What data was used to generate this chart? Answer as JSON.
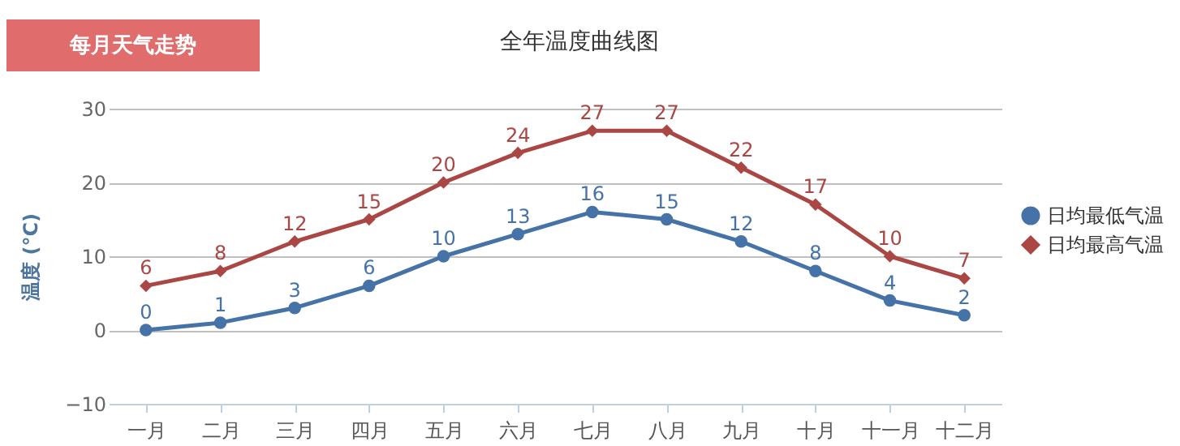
{
  "chart_data": {
    "type": "line",
    "title": "全年温度曲线图",
    "ylabel": "温度 (°C)",
    "annotations": [
      "每月天气走势"
    ],
    "categories": [
      "一月",
      "二月",
      "三月",
      "四月",
      "五月",
      "六月",
      "七月",
      "八月",
      "九月",
      "十月",
      "十一月",
      "十二月"
    ],
    "series": [
      {
        "name": "日均最低气温",
        "color": "#4572a7",
        "marker": "circle",
        "values": [
          0,
          1,
          3,
          6,
          10,
          13,
          16,
          15,
          12,
          8,
          4,
          2
        ]
      },
      {
        "name": "日均最高气温",
        "color": "#aa4643",
        "marker": "diamond",
        "values": [
          6,
          8,
          12,
          15,
          20,
          24,
          27,
          27,
          22,
          17,
          10,
          7
        ]
      }
    ],
    "ylim": [
      -10,
      30
    ],
    "yticks": [
      -10,
      0,
      10,
      20,
      30
    ],
    "grid": "y",
    "legend": "right",
    "data_labels": true
  }
}
